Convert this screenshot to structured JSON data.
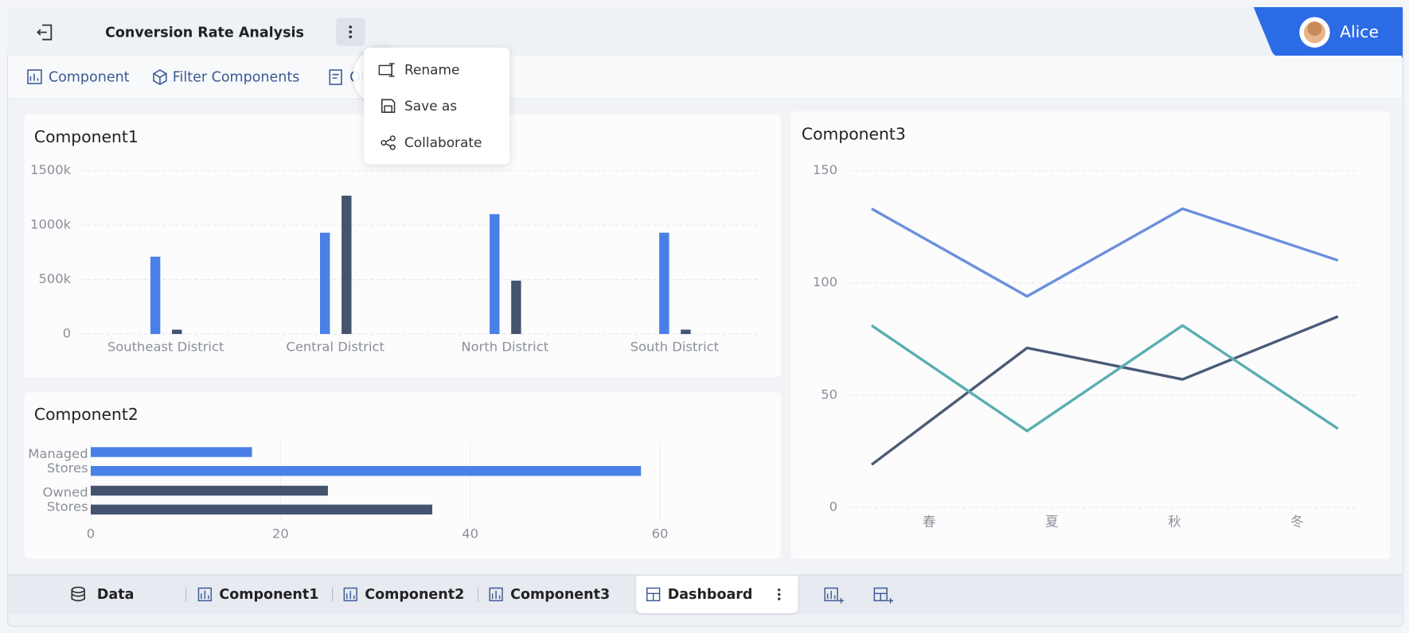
{
  "header": {
    "title": "Conversion Rate Analysis",
    "user": "Alice"
  },
  "toolbar": {
    "items": [
      "Component",
      "Filter Components",
      "Ot"
    ]
  },
  "menu": {
    "items": [
      "Rename",
      "Save as",
      "Collaborate"
    ]
  },
  "chart_data": [
    {
      "type": "bar",
      "title": "Component1",
      "categories": [
        "Southeast District",
        "Central District",
        "North District",
        "South District"
      ],
      "series": [
        {
          "color": "#4a7fe8",
          "values": [
            710000,
            930000,
            1100000,
            930000
          ]
        },
        {
          "color": "#44546f",
          "values": [
            40000,
            1270000,
            490000,
            40000
          ]
        }
      ],
      "ylim": [
        0,
        1500000
      ],
      "yticks": [
        0,
        {
          "value": 500000,
          "label": "500k"
        },
        {
          "value": 1000000,
          "label": "1000k"
        },
        {
          "value": 1500000,
          "label": "1500k"
        }
      ],
      "grid": true
    },
    {
      "type": "hbar",
      "title": "Component2",
      "categories": [
        "Managed Stores",
        "Owned Stores"
      ],
      "colors": [
        "#4a7fe8",
        "#44546f"
      ],
      "series": [
        {
          "values": [
            17,
            25
          ]
        },
        {
          "values": [
            58,
            36
          ]
        }
      ],
      "xlim": [
        0,
        70
      ],
      "xticks": [
        0,
        20,
        40,
        60
      ],
      "grid": true
    },
    {
      "type": "line",
      "title": "Component3",
      "categories": [
        "春",
        "夏",
        "秋",
        "冬"
      ],
      "series": [
        {
          "color": "#6b8fdc",
          "values": [
            133,
            94,
            133,
            110
          ]
        },
        {
          "color": "#4a5a78",
          "values": [
            19,
            71,
            57,
            85
          ]
        },
        {
          "color": "#5aaeb0",
          "values": [
            81,
            34,
            81,
            35
          ]
        }
      ],
      "ylim": [
        0,
        150
      ],
      "yticks": [
        0,
        50,
        100,
        150
      ],
      "grid": true
    }
  ],
  "tabs": {
    "items": [
      "Data",
      "Component1",
      "Component2",
      "Component3",
      "Dashboard"
    ]
  }
}
